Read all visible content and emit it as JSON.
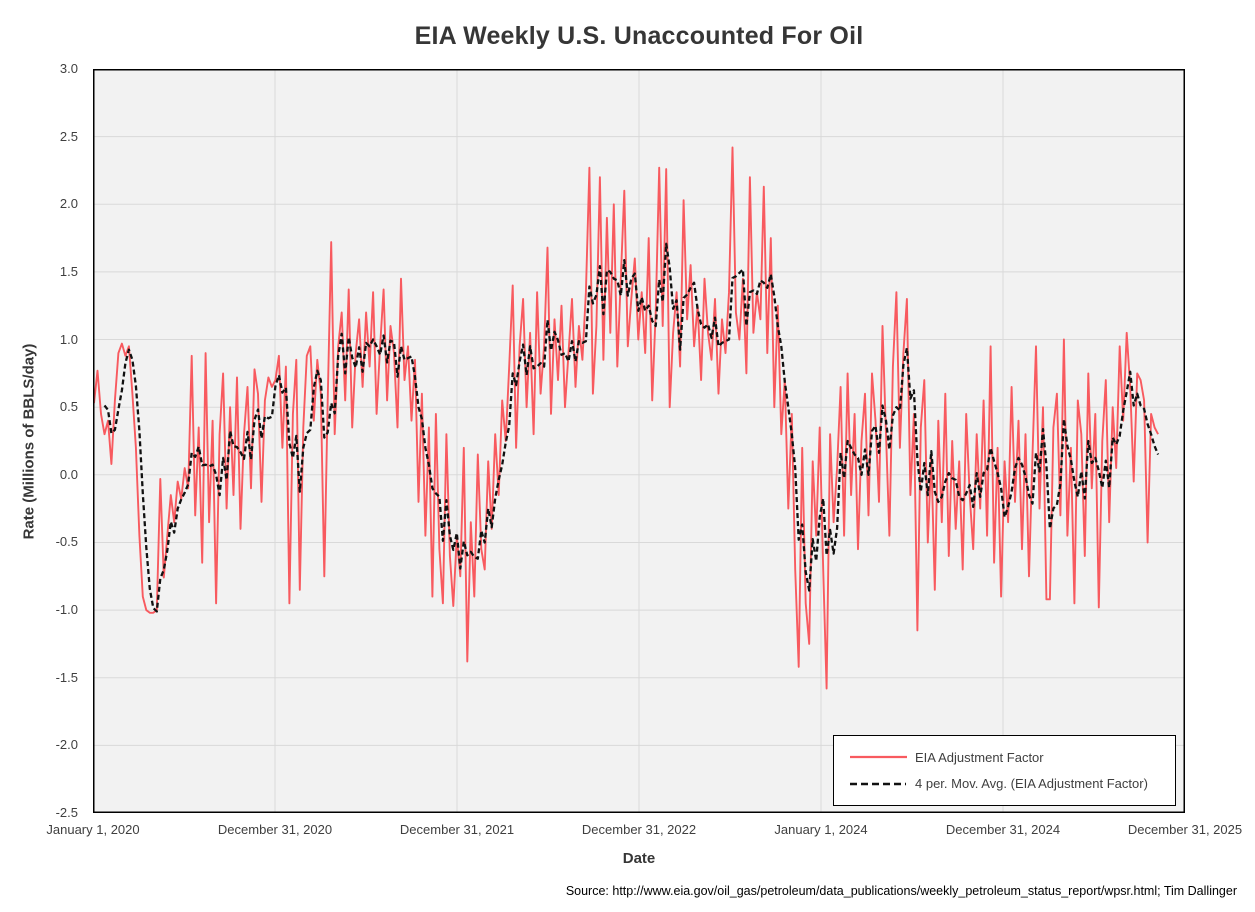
{
  "source_note": "Source: http://www.eia.gov/oil_gas/petroleum/data_publications/weekly_petroleum_status_report/wpsr.html; Tim Dallinger",
  "chart_data": {
    "type": "line",
    "title": "EIA Weekly U.S. Unaccounted For Oil",
    "xlabel": "Date",
    "ylabel": "Rate (Millions of BBLS/day)",
    "ylim": [
      -2.5,
      3.0
    ],
    "ytick_step": 0.5,
    "ytick_labels": [
      "3.0",
      "2.5",
      "2.0",
      "1.5",
      "1.0",
      "0.5",
      "0.0",
      "-0.5",
      "-1.0",
      "-1.5",
      "-2.0",
      "-2.5"
    ],
    "xtick_labels": [
      "January 1, 2020",
      "December 31, 2020",
      "December 31, 2021",
      "December 31, 2022",
      "January 1, 2024",
      "December 31, 2024",
      "December 31, 2025"
    ],
    "x_axis_span_days": 2191,
    "grid": true,
    "plot_bg_color": "#F2F2F2",
    "grid_color": "#D9D9D9",
    "border_color": "#000000",
    "legend_position": "bottom-right-inside",
    "series": [
      {
        "name": "EIA Adjustment Factor",
        "color": "#F85A5F",
        "style": "solid",
        "cadence": "weekly",
        "start": "January 3, 2020",
        "end": "November 2025",
        "n_points": 306,
        "values": [
          0.53,
          0.77,
          0.45,
          0.3,
          0.4,
          0.08,
          0.55,
          0.9,
          0.97,
          0.88,
          0.95,
          0.6,
          0.2,
          -0.45,
          -0.9,
          -1.0,
          -1.02,
          -1.02,
          -1.0,
          -0.03,
          -0.76,
          -0.45,
          -0.15,
          -0.35,
          -0.05,
          -0.18,
          0.05,
          -0.1,
          0.88,
          -0.3,
          0.35,
          -0.65,
          0.9,
          -0.35,
          0.4,
          -0.95,
          0.3,
          0.75,
          -0.25,
          0.5,
          -0.15,
          0.72,
          -0.4,
          0.3,
          0.65,
          -0.1,
          0.78,
          0.6,
          -0.2,
          0.55,
          0.72,
          0.65,
          0.7,
          0.88,
          0.2,
          0.8,
          -0.95,
          0.45,
          0.85,
          -0.85,
          0.35,
          0.88,
          0.95,
          0.4,
          0.85,
          0.6,
          -0.75,
          0.55,
          1.72,
          0.3,
          0.95,
          1.2,
          0.55,
          1.37,
          0.35,
          0.9,
          1.15,
          0.65,
          1.2,
          0.8,
          1.35,
          0.45,
          0.95,
          1.37,
          0.55,
          1.1,
          0.9,
          0.35,
          1.45,
          0.7,
          0.95,
          0.4,
          0.85,
          -0.2,
          0.6,
          -0.45,
          0.35,
          -0.9,
          0.45,
          -0.55,
          -0.95,
          0.3,
          -0.6,
          -0.97,
          -0.45,
          -0.75,
          0.2,
          -1.38,
          -0.35,
          -0.9,
          0.15,
          -0.55,
          -0.7,
          0.1,
          -0.4,
          0.3,
          -0.15,
          0.55,
          0.25,
          0.8,
          1.4,
          0.2,
          0.95,
          1.3,
          0.5,
          1.05,
          0.3,
          1.35,
          0.6,
          0.95,
          1.68,
          0.45,
          1.15,
          0.7,
          1.25,
          0.5,
          0.9,
          1.3,
          0.65,
          1.1,
          0.85,
          1.35,
          2.27,
          0.6,
          1.1,
          2.2,
          0.85,
          1.9,
          1.05,
          2.0,
          0.8,
          1.45,
          2.1,
          0.95,
          1.3,
          1.6,
          1.0,
          1.35,
          0.9,
          1.75,
          0.55,
          1.2,
          2.27,
          1.1,
          2.26,
          0.5,
          1.05,
          1.35,
          0.8,
          2.03,
          1.15,
          1.55,
          0.95,
          1.25,
          0.7,
          1.45,
          1.05,
          0.85,
          1.3,
          0.6,
          1.15,
          0.9,
          1.35,
          2.42,
          1.2,
          1.0,
          1.45,
          0.75,
          2.2,
          1.05,
          1.35,
          1.15,
          2.13,
          0.9,
          1.75,
          0.5,
          1.25,
          0.3,
          0.7,
          -0.25,
          0.45,
          -0.7,
          -1.42,
          0.2,
          -0.95,
          -1.25,
          0.1,
          -0.45,
          0.35,
          -0.7,
          -1.58,
          0.3,
          -0.35,
          0.05,
          0.65,
          -0.45,
          0.75,
          -0.15,
          0.45,
          -0.55,
          0.25,
          0.6,
          -0.3,
          0.75,
          0.4,
          -0.2,
          1.1,
          0.3,
          -0.45,
          0.8,
          1.35,
          0.2,
          0.9,
          1.3,
          -0.15,
          0.45,
          -1.15,
          0.35,
          0.7,
          -0.5,
          0.15,
          -0.85,
          0.4,
          -0.35,
          0.6,
          -0.6,
          0.25,
          -0.4,
          0.1,
          -0.7,
          0.45,
          -0.15,
          -0.55,
          0.3,
          -0.25,
          0.55,
          -0.45,
          0.95,
          -0.65,
          0.2,
          -0.9,
          0.1,
          -0.35,
          0.65,
          -0.2,
          0.4,
          -0.55,
          0.3,
          -0.75,
          0.15,
          0.95,
          -0.25,
          0.5,
          -0.92,
          -0.92,
          0.35,
          0.6,
          -0.3,
          1.0,
          -0.45,
          0.2,
          -0.95,
          0.55,
          0.3,
          -0.6,
          0.75,
          -0.1,
          0.45,
          -0.98,
          0.25,
          0.7,
          -0.35,
          0.5,
          0.05,
          0.95,
          0.4,
          1.05,
          0.65,
          -0.05,
          0.75,
          0.7,
          0.55,
          -0.5,
          0.45,
          0.35,
          0.3
        ]
      },
      {
        "name": "4 per. Mov. Avg. (EIA Adjustment Factor)",
        "color": "#111111",
        "style": "dashed",
        "derived_from": "4-period trailing moving average of EIA Adjustment Factor values"
      }
    ]
  }
}
